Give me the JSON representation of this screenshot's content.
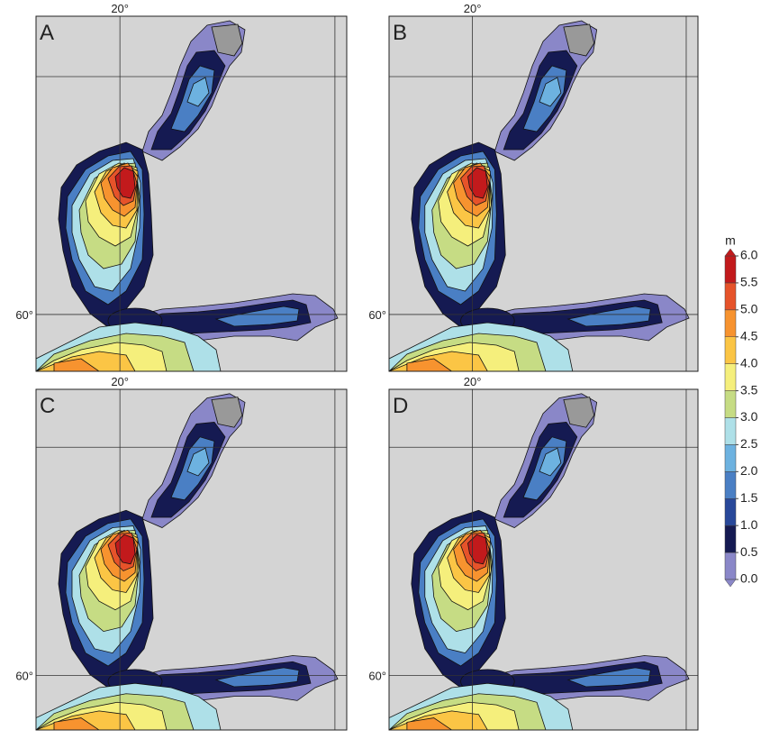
{
  "panels": [
    {
      "label": "A",
      "lon_label": "20°",
      "lat_label": "60°"
    },
    {
      "label": "B",
      "lon_label": "20°",
      "lat_label": "60°"
    },
    {
      "label": "C",
      "lon_label": "20°",
      "lat_label": "60°"
    },
    {
      "label": "D",
      "lon_label": "20°",
      "lat_label": "60°"
    }
  ],
  "colorbar": {
    "unit": "m",
    "ticks": [
      {
        "value": 0,
        "label": "0.0"
      },
      {
        "value": 0.5,
        "label": "0.5"
      },
      {
        "value": 1,
        "label": "1.0"
      },
      {
        "value": 1.5,
        "label": "1.5"
      },
      {
        "value": 2,
        "label": "2.0"
      },
      {
        "value": 2.5,
        "label": "2.5"
      },
      {
        "value": 3,
        "label": "3.0"
      },
      {
        "value": 3.5,
        "label": "3.5"
      },
      {
        "value": 4,
        "label": "4.0"
      },
      {
        "value": 4.5,
        "label": "4.5"
      },
      {
        "value": 5,
        "label": "5.0"
      },
      {
        "value": 5.5,
        "label": "5.5"
      },
      {
        "value": 6,
        "label": "6.0"
      }
    ],
    "colors": [
      "#8a87c8",
      "#151a52",
      "#28489a",
      "#4a7fc4",
      "#6db2e0",
      "#aee0e8",
      "#c6dc84",
      "#f5ef7c",
      "#fbc545",
      "#f7932f",
      "#e6532a",
      "#c21a1c"
    ]
  }
}
